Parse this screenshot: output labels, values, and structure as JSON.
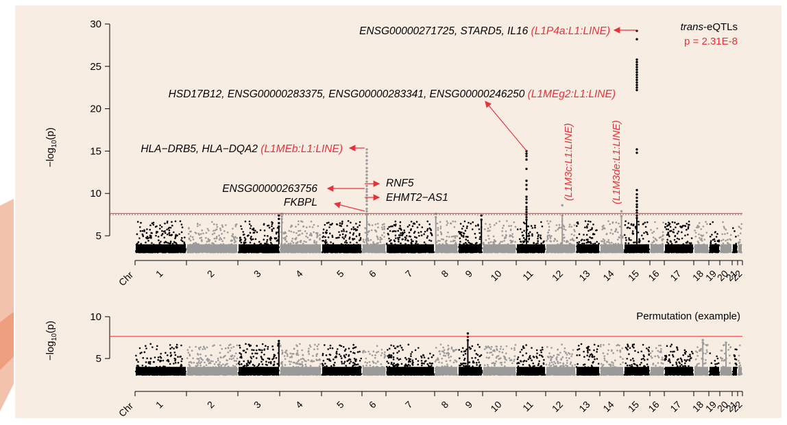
{
  "chart_data": [
    {
      "type": "scatter",
      "subtype": "manhattan",
      "title": "",
      "legend_title_italic": "trans",
      "legend_title_rest": "-eQTLs",
      "legend_threshold": "p = 2.31E-8",
      "ylabel_prefix": "−log",
      "ylabel_sub": "10",
      "ylabel_suffix": "(p)",
      "xlabel": "Chr",
      "chromosomes": [
        "1",
        "2",
        "3",
        "4",
        "5",
        "6",
        "7",
        "8",
        "9",
        "10",
        "11",
        "12",
        "13",
        "14",
        "15",
        "16",
        "17",
        "18",
        "19",
        "20",
        "21",
        "22"
      ],
      "yticks": [
        5,
        10,
        15,
        20,
        25,
        30
      ],
      "ylim": [
        3,
        30
      ],
      "threshold_value": 7.64,
      "threshold_dotted_value": 7.5,
      "background_ceiling": 3.3,
      "peaks": [
        {
          "chr": "3",
          "pos": 0.98,
          "values": [
            7.4,
            7.0,
            6.5,
            6.1
          ]
        },
        {
          "chr": "4",
          "pos": 0.05,
          "values": [
            7.6,
            7.3,
            7.0
          ]
        },
        {
          "chr": "6",
          "pos": 0.2,
          "values": [
            15.2,
            14.8,
            14.4,
            13.9,
            13.5,
            13.0,
            12.6,
            12.2,
            11.8,
            11.4,
            10.9,
            10.5,
            10.2,
            9.8,
            9.4,
            9.1,
            8.7,
            8.2,
            7.9,
            7.5
          ]
        },
        {
          "chr": "8",
          "pos": 0.05,
          "values": [
            7.6,
            7.2
          ]
        },
        {
          "chr": "9",
          "pos": 0.95,
          "values": [
            7.4,
            6.9
          ]
        },
        {
          "chr": "11",
          "pos": 0.35,
          "values": [
            15.0,
            14.7,
            14.4,
            14.0,
            12.9,
            11.5,
            11.0,
            10.5,
            9.6,
            9.3,
            8.9,
            8.4,
            8.1,
            7.8,
            7.5,
            7.2,
            6.9
          ]
        },
        {
          "chr": "12",
          "pos": 0.55,
          "values": [
            8.6,
            7.4
          ]
        },
        {
          "chr": "14",
          "pos": 0.9,
          "values": [
            7.9,
            7.3
          ]
        },
        {
          "chr": "15",
          "pos": 0.5,
          "values": [
            29.2,
            28.2,
            25.8,
            25.5,
            25.2,
            24.9,
            24.6,
            24.3,
            24.0,
            23.7,
            23.4,
            23.1,
            22.8,
            22.5,
            22.2,
            15.2,
            14.8,
            10.4,
            9.9,
            9.5,
            9.1,
            8.7,
            8.4,
            8.0,
            7.7,
            7.4,
            7.1
          ]
        }
      ],
      "annotations": [
        {
          "name": "ann-chr15",
          "genes": "ENSG00000271725, STARD5, IL16 ",
          "repeat": "(L1P4a:L1:LINE)"
        },
        {
          "name": "ann-chr11",
          "genes": "HSD17B12, ENSG00000283375, ENSG00000283341, ENSG00000246250 ",
          "repeat": "(L1MEg2:L1:LINE)"
        },
        {
          "name": "ann-chr6",
          "genes": "HLA−DRB5, HLA−DQA2 ",
          "repeat": "(L1MEb:L1:LINE)"
        },
        {
          "name": "ann-ensg",
          "genes": "ENSG00000263756",
          "repeat": ""
        },
        {
          "name": "ann-fkbpl",
          "genes": "FKBPL",
          "repeat": ""
        },
        {
          "name": "ann-rnf5",
          "genes": "RNF5",
          "repeat": ""
        },
        {
          "name": "ann-ehmt2",
          "genes": "EHMT2−AS1",
          "repeat": ""
        },
        {
          "name": "ann-chr12",
          "genes": "",
          "repeat": "(L1M3c:L1:LINE)"
        },
        {
          "name": "ann-chr14",
          "genes": "",
          "repeat": "(L1M3de:L1:LINE)"
        }
      ],
      "colors": {
        "odd_chr": "#000000",
        "even_chr": "#9a9a9a",
        "threshold": "#e8323a",
        "annotation_red": "#e8323a",
        "background": "#f7ede3"
      }
    },
    {
      "type": "scatter",
      "subtype": "manhattan",
      "title": "",
      "legend_title": "Permutation (example)",
      "ylabel_prefix": "−log",
      "ylabel_sub": "10",
      "ylabel_suffix": "(p)",
      "xlabel": "Chr",
      "chromosomes": [
        "1",
        "2",
        "3",
        "4",
        "5",
        "6",
        "7",
        "8",
        "9",
        "10",
        "11",
        "12",
        "13",
        "14",
        "15",
        "16",
        "17",
        "18",
        "19",
        "20",
        "21",
        "22"
      ],
      "yticks": [
        5,
        10
      ],
      "ylim": [
        3,
        10.5
      ],
      "threshold_value": 7.64,
      "background_ceiling": 3.3,
      "peaks": [
        {
          "chr": "3",
          "pos": 0.98,
          "values": [
            7.1,
            6.8
          ]
        },
        {
          "chr": "9",
          "pos": 0.4,
          "values": [
            8.0,
            7.6,
            7.2
          ]
        },
        {
          "chr": "18",
          "pos": 0.6,
          "values": [
            7.2,
            6.9
          ]
        },
        {
          "chr": "20",
          "pos": 0.5,
          "values": [
            6.9
          ]
        }
      ]
    }
  ]
}
